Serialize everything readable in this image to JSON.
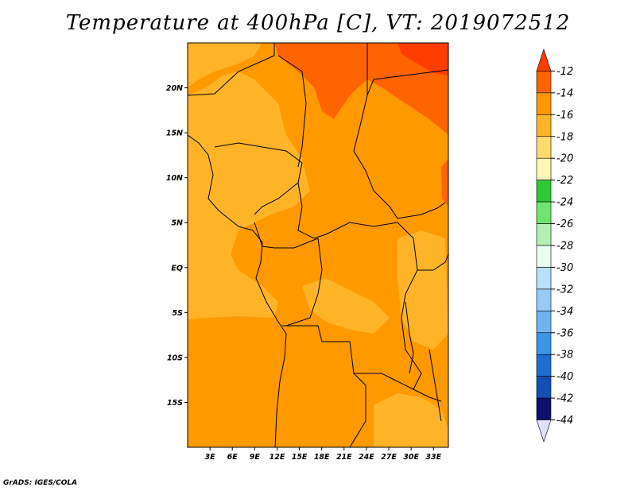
{
  "title": "Temperature at 400hPa [C], VT: 2019072512",
  "footer": "GrADS: IGES/COLA",
  "map": {
    "lon_range": [
      0,
      35
    ],
    "lat_range": [
      -20,
      25
    ],
    "lat_ticks": [
      {
        "value": 20,
        "label": "20N"
      },
      {
        "value": 15,
        "label": "15N"
      },
      {
        "value": 10,
        "label": "10N"
      },
      {
        "value": 5,
        "label": "5N"
      },
      {
        "value": 0,
        "label": "EQ"
      },
      {
        "value": -5,
        "label": "5S"
      },
      {
        "value": -10,
        "label": "10S"
      },
      {
        "value": -15,
        "label": "15S"
      }
    ],
    "lon_ticks": [
      {
        "value": 3,
        "label": "3E"
      },
      {
        "value": 6,
        "label": "6E"
      },
      {
        "value": 9,
        "label": "9E"
      },
      {
        "value": 12,
        "label": "12E"
      },
      {
        "value": 15,
        "label": "15E"
      },
      {
        "value": 18,
        "label": "18E"
      },
      {
        "value": 21,
        "label": "21E"
      },
      {
        "value": 24,
        "label": "24E"
      },
      {
        "value": 27,
        "label": "27E"
      },
      {
        "value": 30,
        "label": "30E"
      },
      {
        "value": 33,
        "label": "33E"
      }
    ]
  },
  "colorbar": {
    "levels": [
      "-12",
      "-14",
      "-16",
      "-18",
      "-20",
      "-22",
      "-24",
      "-26",
      "-28",
      "-30",
      "-32",
      "-34",
      "-36",
      "-38",
      "-40",
      "-42",
      "-44"
    ],
    "colors": [
      "#ff3c00",
      "#ff6400",
      "#ff9900",
      "#ffb428",
      "#ffdb6e",
      "#fff7b8",
      "#32c832",
      "#6ee66e",
      "#b4f0b4",
      "#e6fff0",
      "#b8e0ff",
      "#96caf7",
      "#6eb4f0",
      "#3c96e6",
      "#1e6ed2",
      "#1450b4",
      "#101070",
      "#e0e0ff"
    ]
  },
  "field_colors": {
    "base": "#ff9900",
    "warm": "#ff6400",
    "hottest": "#ff3c00",
    "cool": "#ffb428"
  }
}
